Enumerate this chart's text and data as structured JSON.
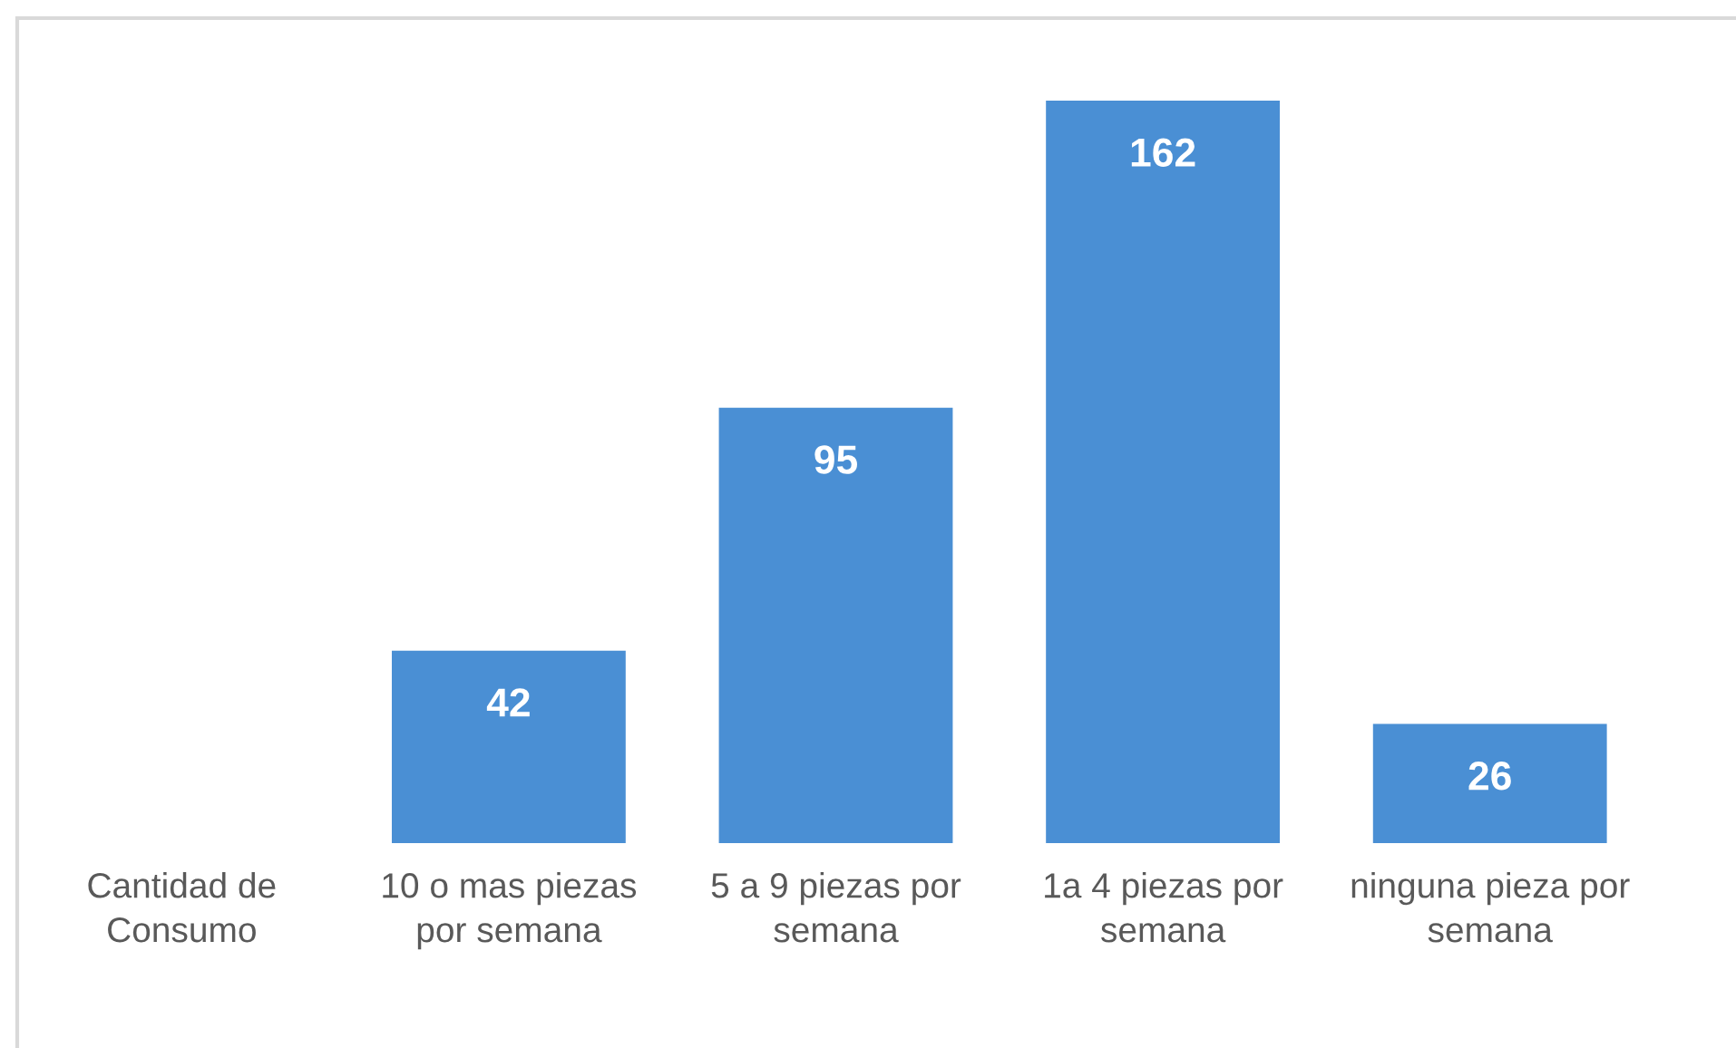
{
  "chart_data": {
    "type": "bar",
    "categories": [
      "Cantidad de Consumo",
      "10 o mas piezas por semana",
      "5 a 9 piezas por semana",
      "1a 4 piezas por semana",
      "ninguna pieza por semana"
    ],
    "values": [
      null,
      42,
      95,
      162,
      26
    ],
    "color": "#4a8fd4",
    "data_labels": true,
    "ylim": [
      0,
      180
    ]
  }
}
